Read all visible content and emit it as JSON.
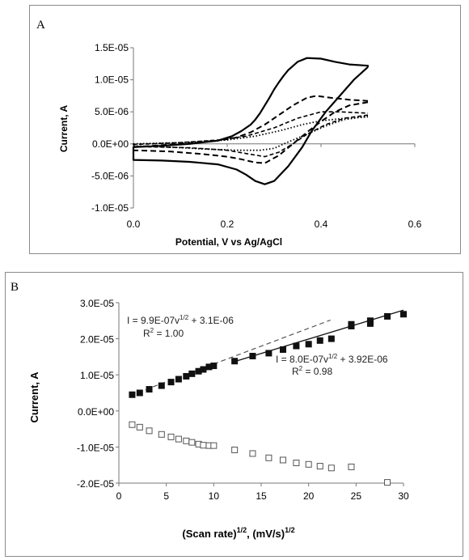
{
  "chart_data": [
    {
      "panel": "A",
      "type": "line",
      "xlabel": "Potential, V vs Ag/AgCl",
      "ylabel": "Current, A",
      "xlim": [
        0,
        0.6
      ],
      "ylim": [
        -1e-05,
        1.5e-05
      ],
      "xticks": [
        0.0,
        0.2,
        0.4,
        0.6
      ],
      "xtick_labels": [
        "0.0",
        "0.2",
        "0.4",
        "0.6"
      ],
      "yticks": [
        1.5e-05,
        1e-05,
        5e-06,
        0,
        -5e-06,
        -1e-05
      ],
      "ytick_labels": [
        "1.5E-05",
        "1.0E-05",
        "5.0E-06",
        "0.0E+00",
        "-5.0E-06",
        "-1.0E-05"
      ],
      "grid": false,
      "series": [
        {
          "style": "solid",
          "x": [
            0.5,
            0.47,
            0.44,
            0.41,
            0.38,
            0.36,
            0.33,
            0.3,
            0.28,
            0.26,
            0.24,
            0.22,
            0.18,
            0.12,
            0.06,
            0.0,
            0.0,
            0.06,
            0.12,
            0.18,
            0.21,
            0.23,
            0.25,
            0.26,
            0.27,
            0.28,
            0.29,
            0.3,
            0.31,
            0.32,
            0.33,
            0.35,
            0.37,
            0.4,
            0.43,
            0.46,
            0.5,
            0.5
          ],
          "y": [
            1.2e-05,
            1e-05,
            7.5e-06,
            5e-06,
            2e-06,
            -5e-07,
            -3.5e-06,
            -5.8e-06,
            -6.3e-06,
            -5.8e-06,
            -4.8e-06,
            -4e-06,
            -3.2e-06,
            -2.8e-06,
            -2.6e-06,
            -2.5e-06,
            -5e-07,
            -3e-07,
            0.0,
            5e-07,
            1.2e-06,
            2e-06,
            3e-06,
            3.8e-06,
            4.8e-06,
            6e-06,
            7.2e-06,
            8.5e-06,
            9.6e-06,
            1.06e-05,
            1.15e-05,
            1.28e-05,
            1.34e-05,
            1.33e-05,
            1.28e-05,
            1.24e-05,
            1.22e-05,
            1.2e-05
          ]
        },
        {
          "style": "dashed",
          "x": [
            0.5,
            0.46,
            0.43,
            0.4,
            0.37,
            0.34,
            0.31,
            0.28,
            0.26,
            0.23,
            0.2,
            0.15,
            0.08,
            0.0,
            0.0,
            0.1,
            0.18,
            0.22,
            0.25,
            0.28,
            0.31,
            0.34,
            0.37,
            0.39,
            0.42,
            0.46,
            0.5
          ],
          "y": [
            6.5e-06,
            6e-06,
            5e-06,
            3.5e-06,
            1.8e-06,
            0.0,
            -1.8e-06,
            -3e-06,
            -2.9e-06,
            -2.4e-06,
            -2e-06,
            -1.6e-06,
            -1.2e-06,
            -1e-06,
            -5e-07,
            0.0,
            5e-07,
            1e-06,
            1.8e-06,
            3e-06,
            4.5e-06,
            6e-06,
            7.2e-06,
            7.5e-06,
            7.2e-06,
            6.9e-06,
            6.7e-06
          ]
        },
        {
          "style": "dash-dot",
          "x": [
            0.5,
            0.45,
            0.41,
            0.37,
            0.34,
            0.31,
            0.28,
            0.24,
            0.2,
            0.12,
            0.0,
            0.0,
            0.1,
            0.18,
            0.24,
            0.3,
            0.35,
            0.4,
            0.44,
            0.5
          ],
          "y": [
            4.5e-06,
            4e-06,
            3e-06,
            1.5e-06,
            0.0,
            -1.3e-06,
            -2e-06,
            -1.5e-06,
            -1e-06,
            -6e-07,
            -4e-07,
            -1e-07,
            2e-07,
            6e-07,
            1.2e-06,
            2.5e-06,
            4e-06,
            5e-06,
            5e-06,
            4.8e-06
          ]
        },
        {
          "style": "dotted",
          "x": [
            0.5,
            0.45,
            0.41,
            0.37,
            0.33,
            0.3,
            0.27,
            0.22,
            0.15,
            0.08,
            0.0,
            0.0,
            0.1,
            0.2,
            0.26,
            0.32,
            0.36,
            0.4,
            0.45,
            0.5
          ],
          "y": [
            4.3e-06,
            3.8e-06,
            2.8e-06,
            1.5e-06,
            3e-07,
            -7e-07,
            -1e-06,
            -1e-06,
            -8e-07,
            -5e-07,
            -3e-07,
            0.0,
            2e-07,
            6e-07,
            1.2e-06,
            2.2e-06,
            3e-06,
            3.6e-06,
            4e-06,
            4.2e-06
          ]
        }
      ]
    },
    {
      "panel": "B",
      "type": "scatter",
      "xlabel_main": "(Scan rate)",
      "xlabel_exp1": "1/2",
      "xlabel_units": ", (mV/s)",
      "xlabel_exp2": "1/2",
      "ylabel": "Current, A",
      "xlim": [
        0,
        30
      ],
      "ylim": [
        -2e-05,
        3e-05
      ],
      "xticks": [
        0,
        5,
        10,
        15,
        20,
        25,
        30
      ],
      "xtick_labels": [
        "0",
        "5",
        "10",
        "15",
        "20",
        "25",
        "30"
      ],
      "yticks": [
        3e-05,
        2e-05,
        1e-05,
        0,
        -1e-05,
        -2e-05
      ],
      "ytick_labels": [
        "3.0E-05",
        "2.0E-05",
        "1.0E-05",
        "0.0E+00",
        "-1.0E-05",
        "-2.0E-05"
      ],
      "grid": false,
      "series": [
        {
          "marker": "filled-square",
          "x": [
            1.4,
            2.2,
            3.2,
            4.5,
            5.5,
            6.3,
            7.1,
            7.7,
            8.4,
            8.9,
            9.5,
            10.0,
            12.2,
            14.1,
            15.8,
            17.3,
            18.7,
            20.0,
            21.2,
            22.4,
            24.5,
            24.5,
            26.5,
            26.5,
            28.3,
            30.0
          ],
          "y": [
            4.5e-06,
            5e-06,
            6e-06,
            7e-06,
            8e-06,
            8.8e-06,
            9.6e-06,
            1.03e-05,
            1.1e-05,
            1.15e-05,
            1.22e-05,
            1.25e-05,
            1.38e-05,
            1.52e-05,
            1.6e-05,
            1.7e-05,
            1.8e-05,
            1.85e-05,
            1.95e-05,
            2e-05,
            2.35e-05,
            2.4e-05,
            2.42e-05,
            2.5e-05,
            2.62e-05,
            2.68e-05
          ]
        },
        {
          "marker": "open-square",
          "x": [
            1.4,
            2.2,
            3.2,
            4.5,
            5.5,
            6.3,
            7.1,
            7.7,
            8.4,
            8.9,
            9.5,
            10.0,
            12.2,
            14.1,
            15.8,
            17.3,
            18.7,
            20.0,
            21.2,
            22.4,
            24.5,
            28.3
          ],
          "y": [
            -3.8e-06,
            -4.5e-06,
            -5.5e-06,
            -6.5e-06,
            -7.2e-06,
            -7.8e-06,
            -8.3e-06,
            -8.7e-06,
            -9.2e-06,
            -9.5e-06,
            -9.6e-06,
            -9.6e-06,
            -1.08e-05,
            -1.18e-05,
            -1.3e-05,
            -1.36e-05,
            -1.44e-05,
            -1.48e-05,
            -1.53e-05,
            -1.58e-05,
            -1.55e-05,
            -1.98e-05
          ]
        }
      ],
      "fits": [
        {
          "style": "dashed",
          "slope": 9.9e-07,
          "intercept": 3.1e-06,
          "x_range": [
            1.2,
            22.3
          ],
          "eq_prefix": "I = 9.9E-07v",
          "eq_exp": "1/2",
          "eq_suffix": " + 3.1E-06",
          "r2_prefix": "R",
          "r2_exp": "2",
          "r2_suffix": " = 1.00"
        },
        {
          "style": "solid",
          "slope": 8e-07,
          "intercept": 3.92e-06,
          "x_range": [
            12.0,
            30.0
          ],
          "eq_prefix": "I = 8.0E-07v",
          "eq_exp": "1/2",
          "eq_suffix": " + 3.92E-06",
          "r2_prefix": "R",
          "r2_exp": "2",
          "r2_suffix": " = 0.98"
        }
      ]
    }
  ],
  "panels": {
    "a_label": "A",
    "b_label": "B"
  }
}
